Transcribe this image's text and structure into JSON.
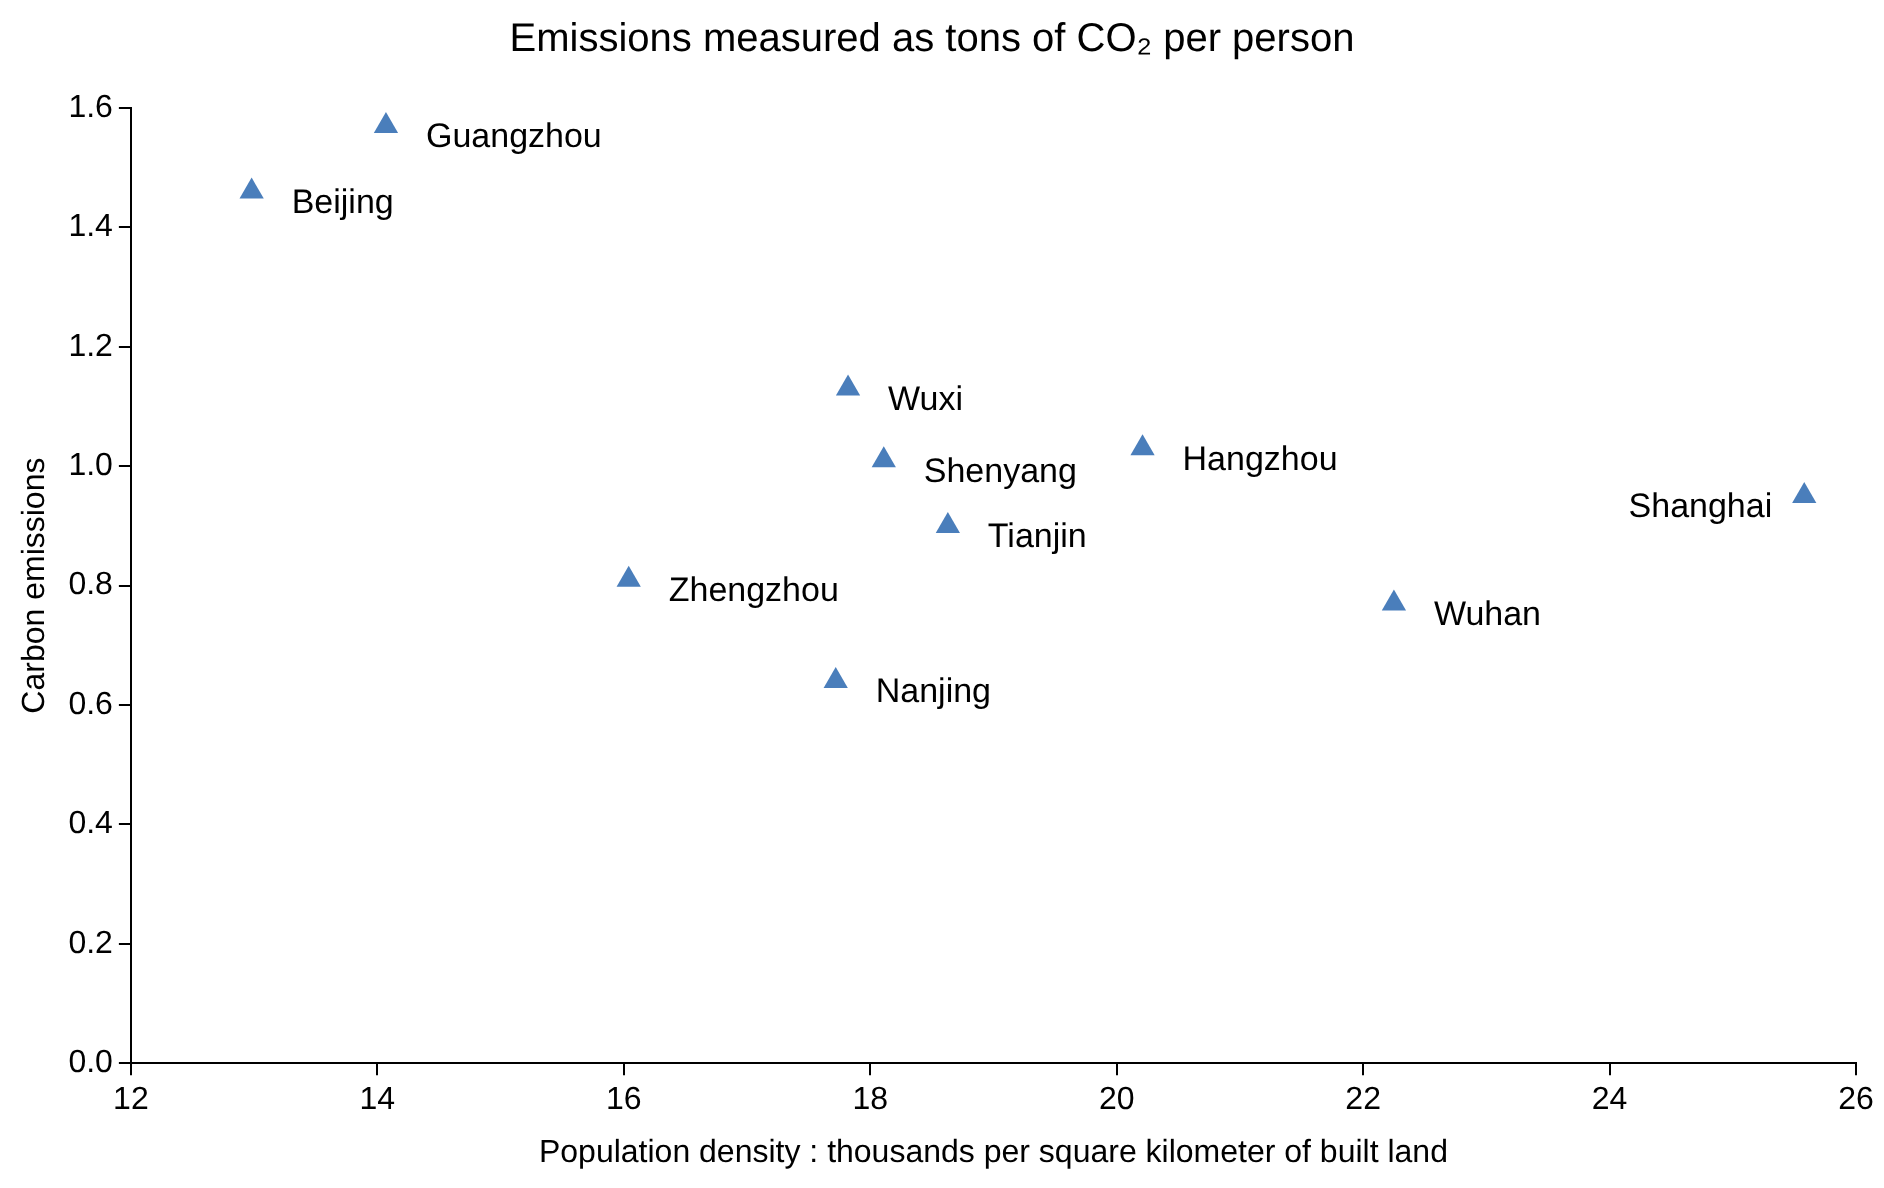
{
  "chart_data": {
    "type": "scatter",
    "title": "Emissions measured as tons of CO₂ per person",
    "xlabel": "Population density : thousands per square kilometer of built land",
    "ylabel": "Carbon emissions",
    "x": [
      14.07,
      12.98,
      17.82,
      18.11,
      20.21,
      18.63,
      25.58,
      16.04,
      22.25,
      17.72
    ],
    "values": [
      1.57,
      1.46,
      1.13,
      1.01,
      1.03,
      0.9,
      0.95,
      0.81,
      0.77,
      0.64
    ],
    "color": "#4a7ebb",
    "marker": "triangle",
    "grid": false,
    "legend": false,
    "xlim": [
      12,
      26
    ],
    "xticks": [
      12,
      14,
      16,
      18,
      20,
      22,
      24,
      26
    ],
    "ylim": [
      0,
      1.6
    ],
    "yticks": [
      {
        "value": 0,
        "label": "0.0"
      },
      0.2,
      0.4,
      0.6,
      0.8,
      {
        "value": 1,
        "label": "1.0"
      },
      1.2,
      1.4,
      1.6
    ],
    "annotations": [
      {
        "text": "Guangzhou",
        "x": 14.07,
        "y": 1.57
      },
      {
        "text": "Beijing",
        "x": 12.98,
        "y": 1.46
      },
      {
        "text": "Wuxi",
        "x": 17.82,
        "y": 1.13
      },
      {
        "text": "Shenyang",
        "x": 18.11,
        "y": 1.01
      },
      {
        "text": "Hangzhou",
        "x": 20.21,
        "y": 1.03
      },
      {
        "text": "Tianjin",
        "x": 18.63,
        "y": 0.9
      },
      {
        "text": "Shanghai",
        "x": 25.58,
        "y": 0.95
      },
      {
        "text": "Zhengzhou",
        "x": 16.04,
        "y": 0.81
      },
      {
        "text": "Wuhan",
        "x": 22.25,
        "y": 0.77
      },
      {
        "text": "Nanjing",
        "x": 17.72,
        "y": 0.64
      }
    ]
  }
}
